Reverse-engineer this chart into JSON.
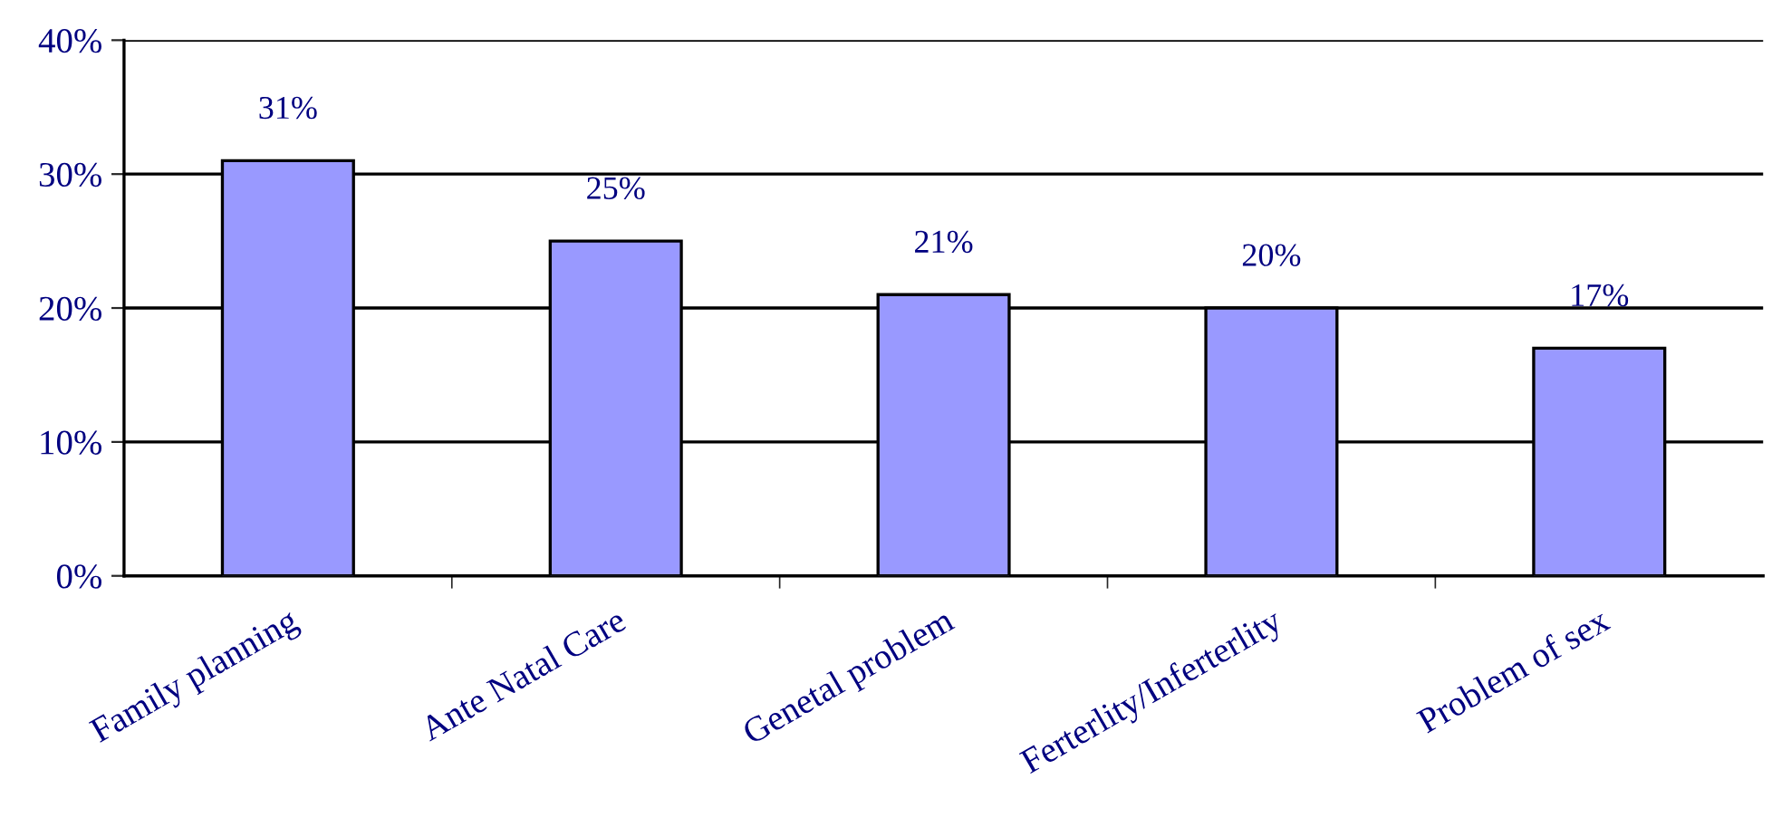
{
  "chart_data": {
    "type": "bar",
    "categories": [
      "Family planning",
      "Ante Natal Care",
      "Genetal problem",
      "Ferterlity/Inferterlity",
      "Problem of sex"
    ],
    "values": [
      31,
      25,
      21,
      20,
      17
    ],
    "value_labels": [
      "31%",
      "25%",
      "21%",
      "20%",
      "17%"
    ],
    "color": "#9999ff",
    "ylim": [
      0,
      40
    ],
    "yticks": [
      {
        "value": 0,
        "label": "0%"
      },
      {
        "value": 10,
        "label": "10%"
      },
      {
        "value": 20,
        "label": "20%"
      },
      {
        "value": 30,
        "label": "30%"
      },
      {
        "value": 40,
        "label": "40%"
      }
    ],
    "grid": "y"
  }
}
